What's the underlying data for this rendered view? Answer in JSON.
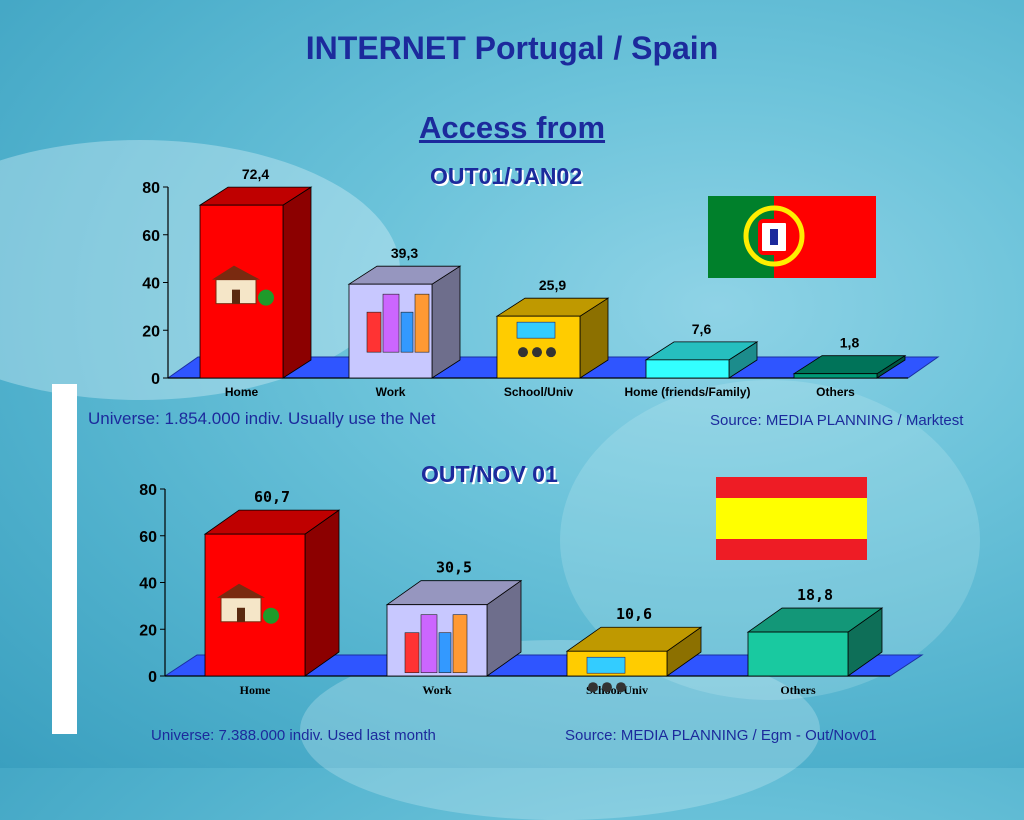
{
  "slide": {
    "title": "INTERNET Portugal / Spain",
    "subtitle": "Access from"
  },
  "chart_data": [
    {
      "type": "bar",
      "title": "OUT01/JAN02",
      "categories": [
        "Home",
        "Work",
        "School/Univ",
        "Home (friends/Family)",
        "Others"
      ],
      "values": [
        72.4,
        39.3,
        25.9,
        7.6,
        1.8
      ],
      "value_labels": [
        "72,4",
        "39,3",
        "25,9",
        "7,6",
        "1,8"
      ],
      "ylim": [
        0,
        80
      ],
      "yticks": [
        "0",
        "20",
        "40",
        "60",
        "80"
      ],
      "colors": [
        "#ff0000",
        "#c8c8ff",
        "#ffcc00",
        "#33ffff",
        "#009977"
      ],
      "country_flag": "portugal-flag",
      "universe_note": "Universe: 1.854.000 indiv. Usually use the Net",
      "source_note": "Source: MEDIA PLANNING / Marktest"
    },
    {
      "type": "bar",
      "title": "OUT/NOV 01",
      "categories": [
        "Home",
        "Work",
        "School/Univ",
        "Others"
      ],
      "values": [
        60.7,
        30.5,
        10.6,
        18.8
      ],
      "value_labels": [
        "60,7",
        "30,5",
        "10,6",
        "18,8"
      ],
      "ylim": [
        0,
        80
      ],
      "yticks": [
        "0",
        "20",
        "40",
        "60",
        "80"
      ],
      "colors": [
        "#ff0000",
        "#c8c8ff",
        "#ffcc00",
        "#19c9a0"
      ],
      "country_flag": "spain-flag",
      "universe_note": "Universe: 7.388.000 indiv. Used last month",
      "source_note": "Source: MEDIA PLANNING / Egm - Out/Nov01"
    }
  ],
  "colors": {
    "title": "#1c2a9c",
    "floor": "#2f55ff",
    "portugal_green": "#00802b",
    "portugal_red": "#ff0000",
    "spain_red": "#ee1c25",
    "spain_yellow": "#ffff00"
  }
}
